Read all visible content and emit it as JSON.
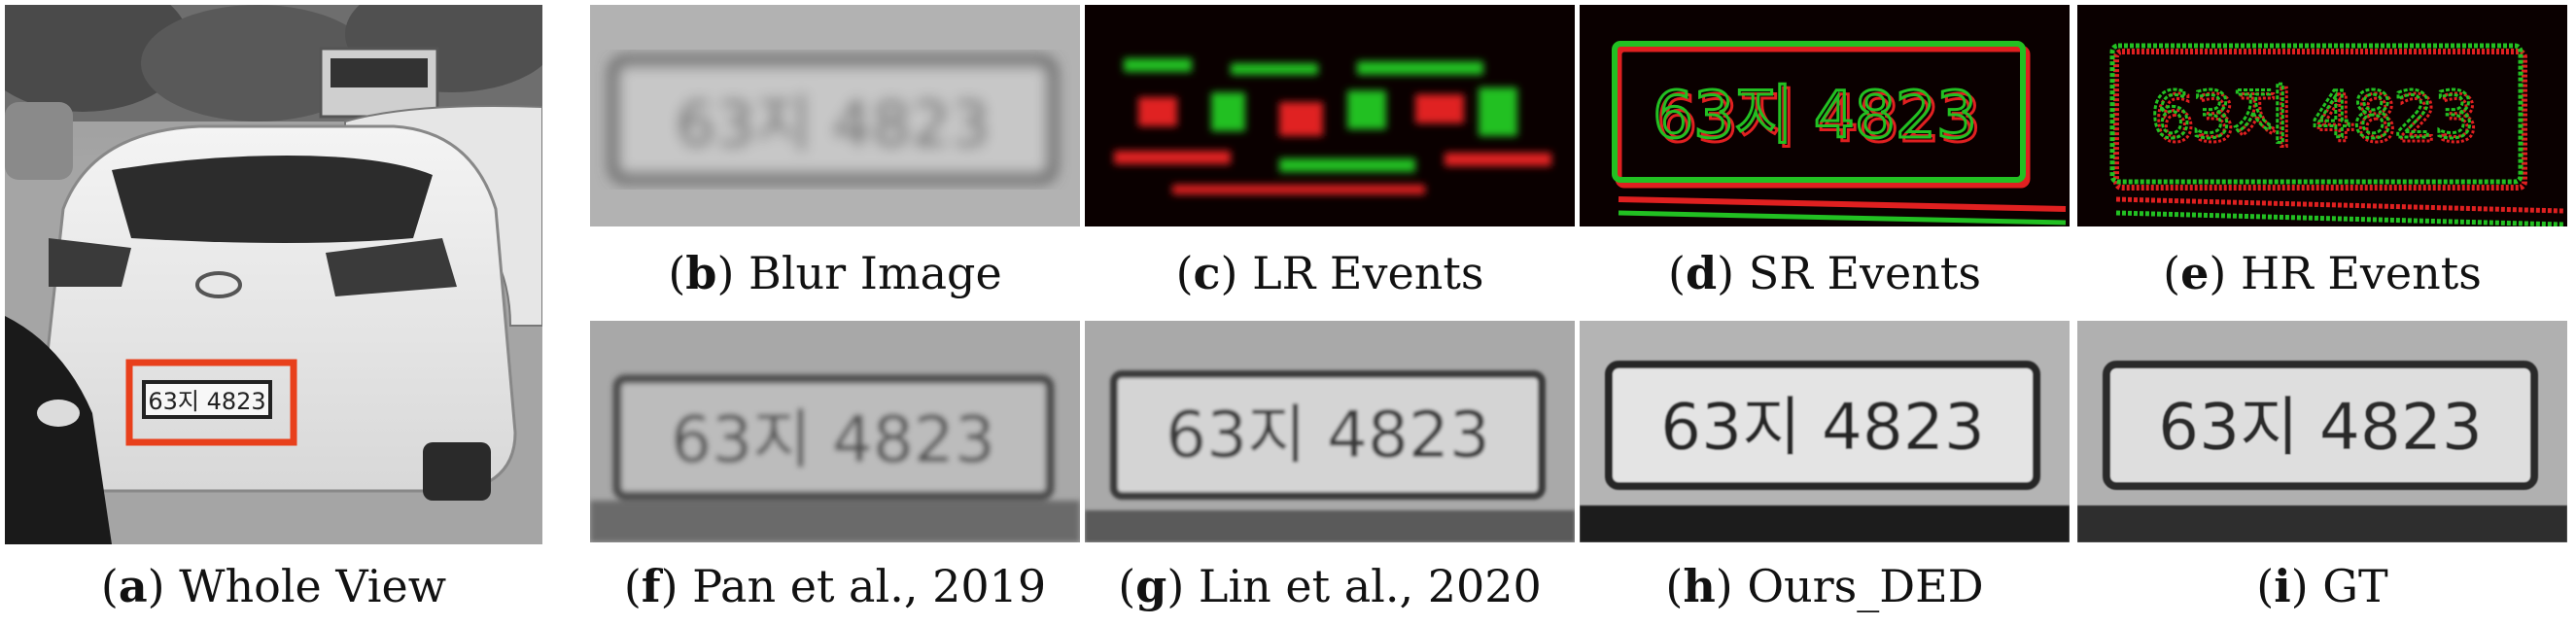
{
  "figure": {
    "panels": [
      {
        "id": "a",
        "letter": "a",
        "label": "Whole View"
      },
      {
        "id": "b",
        "letter": "b",
        "label": "Blur Image"
      },
      {
        "id": "c",
        "letter": "c",
        "label": "LR Events"
      },
      {
        "id": "d",
        "letter": "d",
        "label": "SR Events"
      },
      {
        "id": "e",
        "letter": "e",
        "label": "HR Events"
      },
      {
        "id": "f",
        "letter": "f",
        "label": "Pan et al., 2019"
      },
      {
        "id": "g",
        "letter": "g",
        "label": "Lin et al., 2020"
      },
      {
        "id": "h",
        "letter": "h",
        "label": "Ours_DED"
      },
      {
        "id": "i",
        "letter": "i",
        "label": "GT"
      }
    ],
    "plate_text": "63지 4823",
    "colors": {
      "highlight_box": "#e8401c",
      "event_positive": "#22c022",
      "event_negative": "#e02020",
      "event_background": "#0a0000"
    }
  }
}
